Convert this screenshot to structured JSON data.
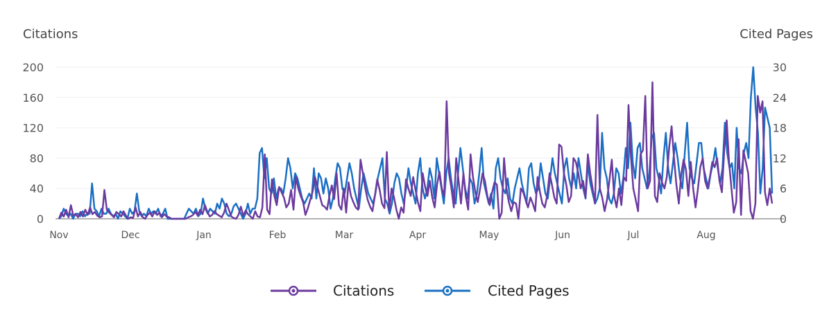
{
  "chart_data": {
    "type": "line",
    "title": "",
    "y_left_label": "Citations",
    "y_right_label": "Cited Pages",
    "y_left_ticks": [
      "0",
      "40",
      "80",
      "120",
      "160",
      "200"
    ],
    "y_right_ticks": [
      "0",
      "6",
      "12",
      "18",
      "24",
      "30"
    ],
    "y_left_range": [
      0,
      200
    ],
    "y_right_range": [
      0,
      30
    ],
    "x_labels": [
      "Nov",
      "Dec",
      "Jan",
      "Feb",
      "Mar",
      "Apr",
      "May",
      "Jun",
      "Jul",
      "Aug"
    ],
    "grid": "horizontal",
    "legend_position": "bottom-center",
    "series": [
      {
        "name": "Citations",
        "axis": "left",
        "color": "#6b3a9e",
        "values": [
          0,
          8,
          3,
          12,
          2,
          18,
          4,
          6,
          2,
          9,
          3,
          12,
          5,
          15,
          6,
          9,
          4,
          2,
          3,
          38,
          12,
          8,
          5,
          2,
          9,
          6,
          3,
          10,
          4,
          0,
          2,
          1,
          15,
          3,
          9,
          2,
          0,
          5,
          8,
          3,
          10,
          5,
          8,
          2,
          6,
          3,
          2,
          0,
          0,
          0,
          0,
          0,
          0,
          0,
          2,
          3,
          5,
          9,
          4,
          12,
          6,
          18,
          9,
          3,
          5,
          10,
          6,
          4,
          2,
          8,
          20,
          12,
          3,
          1,
          0,
          5,
          16,
          4,
          11,
          6,
          3,
          0,
          10,
          3,
          2,
          15,
          85,
          12,
          6,
          52,
          30,
          18,
          42,
          35,
          28,
          15,
          20,
          38,
          12,
          55,
          40,
          30,
          22,
          5,
          14,
          25,
          36,
          55,
          42,
          30,
          18,
          16,
          12,
          30,
          44,
          26,
          60,
          18,
          12,
          40,
          8,
          48,
          30,
          22,
          15,
          12,
          78,
          60,
          40,
          25,
          16,
          10,
          30,
          52,
          38,
          20,
          14,
          88,
          10,
          40,
          28,
          12,
          0,
          15,
          8,
          52,
          40,
          30,
          55,
          38,
          22,
          10,
          60,
          42,
          30,
          50,
          28,
          15,
          45,
          62,
          40,
          30,
          155,
          60,
          40,
          15,
          80,
          50,
          20,
          60,
          30,
          12,
          85,
          55,
          35,
          22,
          40,
          60,
          50,
          30,
          18,
          35,
          48,
          45,
          0,
          8,
          80,
          40,
          22,
          10,
          22,
          20,
          0,
          40,
          35,
          25,
          15,
          28,
          20,
          10,
          55,
          35,
          20,
          15,
          30,
          60,
          45,
          28,
          20,
          98,
          95,
          60,
          45,
          22,
          30,
          80,
          75,
          60,
          40,
          50,
          28,
          85,
          60,
          40,
          20,
          137,
          40,
          28,
          10,
          25,
          50,
          78,
          30,
          15,
          40,
          18,
          55,
          50,
          150,
          82,
          40,
          25,
          10,
          85,
          90,
          162,
          40,
          50,
          180,
          30,
          22,
          60,
          48,
          40,
          55,
          95,
          122,
          80,
          45,
          20,
          58,
          78,
          65,
          30,
          75,
          40,
          15,
          40,
          68,
          80,
          50,
          40,
          55,
          75,
          68,
          80,
          50,
          35,
          90,
          130,
          75,
          40,
          8,
          22,
          105,
          5,
          90,
          75,
          60,
          10,
          0,
          20,
          162,
          140,
          155,
          35,
          18,
          40,
          20
        ]
      },
      {
        "name": "Cited Pages",
        "axis": "right",
        "color": "#1a6fc4",
        "values": [
          0,
          0.5,
          2,
          1,
          0.5,
          1,
          0,
          1,
          1,
          0.5,
          1.5,
          0.5,
          1,
          1,
          7,
          2,
          1.5,
          0.5,
          2,
          1,
          1,
          2,
          1,
          0.5,
          1,
          0,
          1.5,
          1,
          0.5,
          0,
          2,
          1,
          1.5,
          5,
          1.5,
          0.5,
          1,
          0.5,
          2,
          1,
          1.5,
          1,
          2,
          0.5,
          1,
          2,
          0,
          0,
          0,
          0,
          0,
          0,
          0,
          0,
          1,
          2,
          1.5,
          1,
          2,
          0.5,
          1,
          4,
          2,
          1,
          2,
          1.5,
          1,
          3,
          2,
          4,
          3,
          1,
          0.5,
          1,
          2.5,
          3,
          2,
          1,
          0,
          1,
          3,
          1,
          2,
          2,
          4,
          13,
          14,
          8,
          12,
          6,
          5,
          8,
          4,
          6,
          6,
          5,
          8,
          12,
          10,
          6,
          9,
          8,
          6,
          4,
          3,
          4,
          5,
          4,
          10,
          4,
          9,
          8,
          5,
          8,
          6,
          2,
          4,
          8,
          11,
          10,
          6,
          5,
          8,
          11,
          9,
          6,
          4,
          2,
          6,
          9,
          7,
          5,
          4,
          3,
          5,
          8,
          10,
          12,
          4,
          3,
          1,
          3,
          7,
          9,
          8,
          5,
          3,
          6,
          10,
          7,
          5,
          3,
          9,
          12,
          6,
          4,
          6,
          10,
          8,
          4,
          12,
          9,
          6,
          3,
          9,
          12,
          8,
          5,
          3,
          9,
          14,
          10,
          6,
          4,
          8,
          7,
          3,
          5,
          9,
          14,
          7,
          5,
          3,
          5,
          2,
          10,
          12,
          8,
          6,
          5,
          8,
          4,
          3,
          6,
          8,
          10,
          7,
          5,
          3,
          10,
          11,
          7,
          5,
          6,
          11,
          8,
          5,
          4,
          8,
          12,
          9,
          7,
          5,
          3,
          10,
          12,
          8,
          6,
          9,
          6,
          12,
          9,
          6,
          4,
          11,
          7,
          5,
          3,
          4,
          6,
          17,
          10,
          8,
          4,
          3,
          5,
          10,
          9,
          5,
          8,
          14,
          10,
          19,
          11,
          8,
          14,
          15,
          10,
          8,
          6,
          9,
          16,
          17,
          10,
          8,
          5,
          12,
          17,
          10,
          7,
          11,
          15,
          12,
          8,
          6,
          13,
          19,
          10,
          8,
          7,
          11,
          15,
          15,
          10,
          8,
          6,
          9,
          11,
          14,
          10,
          7,
          10,
          19,
          13,
          10,
          11,
          6,
          18,
          10,
          9,
          13,
          15,
          12,
          24,
          30,
          22,
          17,
          5,
          10,
          22,
          20,
          18,
          5
        ]
      }
    ]
  }
}
